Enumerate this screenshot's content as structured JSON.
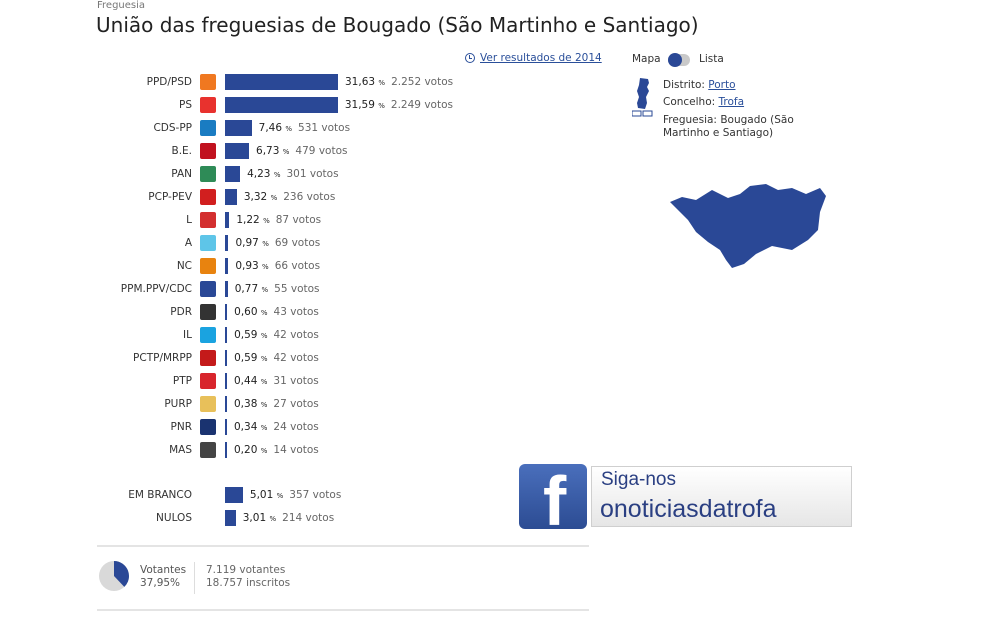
{
  "header": {
    "breadcrumb": "Freguesia",
    "title": "União das freguesias de Bougado (São Martinho e Santiago)",
    "ver_link": "Ver resultados de 2014"
  },
  "colors": {
    "bar": "#2a4896",
    "link": "#2a4f9a"
  },
  "chart_data": {
    "type": "bar",
    "orientation": "horizontal",
    "title": "",
    "xlabel": "",
    "ylabel": "",
    "xlim": [
      0,
      31.63
    ],
    "percent_unit": "%",
    "votes_unit": "votos",
    "categories": [
      "PPD/PSD",
      "PS",
      "CDS-PP",
      "B.E.",
      "PAN",
      "PCP-PEV",
      "L",
      "A",
      "NC",
      "PPM.PPV/CDC",
      "PDR",
      "IL",
      "PCTP/MRPP",
      "PTP",
      "PURP",
      "PNR",
      "MAS",
      "EM BRANCO",
      "NULOS"
    ],
    "series": [
      {
        "values": [
          31.63,
          31.59,
          7.46,
          6.73,
          4.23,
          3.32,
          1.22,
          0.97,
          0.93,
          0.77,
          0.6,
          0.59,
          0.59,
          0.44,
          0.38,
          0.34,
          0.2,
          5.01,
          3.01
        ],
        "percent_labels": [
          "31,63",
          "31,59",
          "7,46",
          "6,73",
          "4,23",
          "3,32",
          "1,22",
          "0,97",
          "0,93",
          "0,77",
          "0,60",
          "0,59",
          "0,59",
          "0,44",
          "0,38",
          "0,34",
          "0,20",
          "5,01",
          "3,01"
        ],
        "votes": [
          "2.252",
          "2.249",
          "531",
          "479",
          "301",
          "236",
          "87",
          "69",
          "66",
          "55",
          "43",
          "42",
          "42",
          "31",
          "27",
          "24",
          "14",
          "357",
          "214"
        ]
      }
    ]
  },
  "party_icons": [
    {
      "icon": "psd-arrow-icon",
      "color": "#f07820"
    },
    {
      "icon": "ps-fist-rose-icon",
      "color": "#e8322e"
    },
    {
      "icon": "cds-cube-icon",
      "color": "#1a7cc2"
    },
    {
      "icon": "be-star-icon",
      "color": "#c1121f"
    },
    {
      "icon": "pan-tree-icon",
      "color": "#2e8b57"
    },
    {
      "icon": "pcp-hammer-sickle-icon",
      "color": "#d11f1f"
    },
    {
      "icon": "livre-poppy-icon",
      "color": "#d32f2f"
    },
    {
      "icon": "alianca-icon",
      "color": "#5ec5e8"
    },
    {
      "icon": "nc-icon",
      "color": "#e8830f"
    },
    {
      "icon": "ppm-ppv-icon",
      "color": "#2a4896"
    },
    {
      "icon": "pdr-stars-icon",
      "color": "#333333"
    },
    {
      "icon": "il-icon",
      "color": "#1aa3e0"
    },
    {
      "icon": "pctp-flag-icon",
      "color": "#c41a1a"
    },
    {
      "icon": "ptp-swirl-icon",
      "color": "#d8252c"
    },
    {
      "icon": "purp-icon",
      "color": "#e8c05a"
    },
    {
      "icon": "pnr-flame-icon",
      "color": "#1a3370"
    },
    {
      "icon": "mas-icon",
      "color": "#444444"
    }
  ],
  "turnout": {
    "label": "Votantes",
    "percent": "37,95%",
    "fraction": 0.3795,
    "voters": "7.119 votantes",
    "registered": "18.757 inscritos"
  },
  "side": {
    "toggle_mapa": "Mapa",
    "toggle_lista": "Lista",
    "distrito_label": "Distrito:",
    "distrito_value": "Porto",
    "concelho_label": "Concelho:",
    "concelho_value": "Trofa",
    "freguesia_label": "Freguesia:",
    "freguesia_value": "Bougado (São Martinho e Santiago)"
  },
  "facebook": {
    "line1": "Siga-nos",
    "line2": "onoticiasdatrofa"
  }
}
